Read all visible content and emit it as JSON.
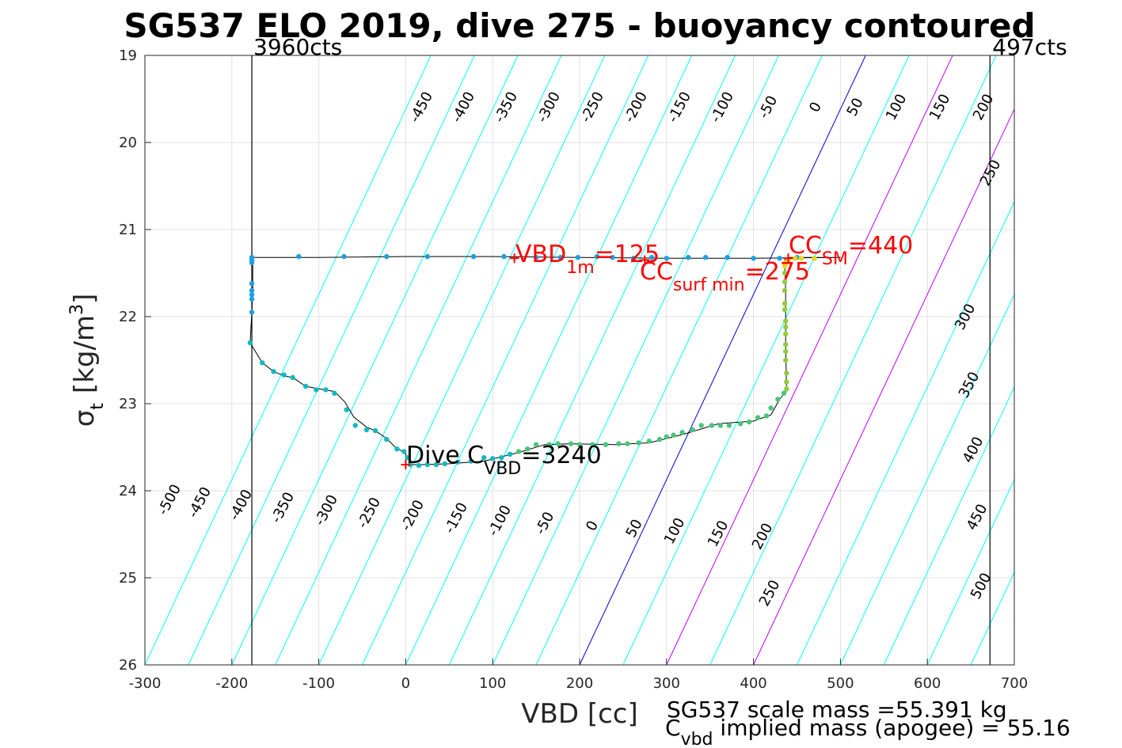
{
  "chart_data": {
    "type": "scatter",
    "title": "SG537 ELO 2019, dive 275 - buoyancy contoured",
    "xlabel": "VBD [cc]",
    "ylabel_main": "σ",
    "ylabel_sub": "t",
    "ylabel_unit": "[kg/m",
    "ylabel_sup": "3",
    "ylabel_close": "]",
    "xlim": [
      -300,
      700
    ],
    "ylim": [
      19,
      26
    ],
    "y_reversed": true,
    "grid": true,
    "xticks": [
      -300,
      -200,
      -100,
      0,
      100,
      200,
      300,
      400,
      500,
      600,
      700
    ],
    "yticks": [
      19,
      20,
      21,
      22,
      23,
      24,
      25,
      26
    ],
    "vlines": [
      {
        "x": -177,
        "label": "3960cts"
      },
      {
        "x": 672,
        "label": "497cts"
      }
    ],
    "contours": {
      "x_at_sigma26": -300,
      "slope_cc_per_kgm3": 47,
      "levels": [
        -500,
        -450,
        -400,
        -350,
        -300,
        -250,
        -200,
        -150,
        -100,
        -50,
        0,
        50,
        100,
        150,
        200,
        250,
        300,
        350,
        400,
        450,
        500
      ],
      "upper_labels": [
        "-450",
        "-400",
        "-350",
        "-300",
        "-250",
        "-200",
        "-150",
        "-100",
        "-50",
        "0",
        "50",
        "100",
        "150",
        "200"
      ],
      "lower_labels": [
        "-500",
        "-450",
        "-400",
        "-350",
        "-300",
        "-250",
        "-200",
        "-150",
        "-100",
        "-50",
        "0",
        "50",
        "100",
        "150",
        "200"
      ],
      "right_labels": [
        "250",
        "300",
        "350",
        "400",
        "450",
        "500"
      ],
      "extra_label": "250"
    },
    "colors": {
      "contour": "#00ffff",
      "zero_contour": "#0000cc",
      "positive_contour": "#bb00ff",
      "track": "#000000",
      "points_blue": "#1e9fe0",
      "points_teal": "#15b8c0",
      "points_green": "#49c47a",
      "points_lime": "#8fcc3c",
      "points_yellow": "#e8d81a",
      "annotation": "#ff0000"
    },
    "track": [
      [
        -177,
        21.32
      ],
      [
        -176,
        21.4
      ],
      [
        -176,
        21.7
      ],
      [
        -177,
        21.95
      ],
      [
        -179,
        22.3
      ],
      [
        -165,
        22.53
      ],
      [
        -152,
        22.63
      ],
      [
        -140,
        22.68
      ],
      [
        -130,
        22.7
      ],
      [
        -115,
        22.8
      ],
      [
        -100,
        22.83
      ],
      [
        -82,
        22.86
      ],
      [
        -70,
        22.98
      ],
      [
        -60,
        23.15
      ],
      [
        -45,
        23.27
      ],
      [
        -35,
        23.31
      ],
      [
        -22,
        23.4
      ],
      [
        -12,
        23.5
      ],
      [
        0,
        23.57
      ],
      [
        0,
        23.7
      ],
      [
        20,
        23.7
      ],
      [
        50,
        23.69
      ],
      [
        90,
        23.66
      ],
      [
        130,
        23.56
      ],
      [
        160,
        23.47
      ],
      [
        190,
        23.46
      ],
      [
        240,
        23.47
      ],
      [
        280,
        23.45
      ],
      [
        320,
        23.35
      ],
      [
        360,
        23.23
      ],
      [
        400,
        23.2
      ],
      [
        420,
        23.13
      ],
      [
        430,
        22.95
      ],
      [
        438,
        22.85
      ],
      [
        437,
        22.3
      ],
      [
        437,
        21.7
      ],
      [
        436,
        21.4
      ],
      [
        436,
        21.35
      ],
      [
        440,
        21.32
      ],
      [
        470,
        21.32
      ],
      [
        500,
        21.32
      ],
      [
        400,
        21.33
      ],
      [
        300,
        21.33
      ],
      [
        200,
        21.32
      ],
      [
        100,
        21.31
      ],
      [
        0,
        21.31
      ],
      [
        -100,
        21.32
      ],
      [
        -177,
        21.32
      ]
    ],
    "points_blue": [
      [
        -177,
        21.32
      ],
      [
        -123,
        21.31
      ],
      [
        -71,
        21.31
      ],
      [
        -22,
        21.31
      ],
      [
        25,
        21.31
      ],
      [
        78,
        21.31
      ],
      [
        113,
        21.31
      ],
      [
        150,
        21.32
      ],
      [
        178,
        21.32
      ],
      [
        198,
        21.32
      ],
      [
        220,
        21.31
      ],
      [
        238,
        21.32
      ],
      [
        262,
        21.33
      ],
      [
        283,
        21.32
      ],
      [
        300,
        21.33
      ],
      [
        325,
        21.32
      ],
      [
        345,
        21.32
      ],
      [
        370,
        21.32
      ],
      [
        400,
        21.33
      ],
      [
        430,
        21.33
      ],
      [
        450,
        21.32
      ],
      [
        470,
        21.33
      ],
      [
        -177,
        21.35
      ],
      [
        -177,
        21.38
      ],
      [
        -177,
        21.62
      ],
      [
        -177,
        21.7
      ],
      [
        -177,
        21.75
      ],
      [
        -177,
        21.8
      ],
      [
        -177,
        21.95
      ]
    ],
    "points_teal": [
      [
        -179,
        22.3
      ],
      [
        -165,
        22.53
      ],
      [
        -152,
        22.63
      ],
      [
        -140,
        22.67
      ],
      [
        -130,
        22.7
      ],
      [
        -115,
        22.8
      ],
      [
        -103,
        22.84
      ],
      [
        -92,
        22.84
      ],
      [
        -82,
        22.88
      ],
      [
        -68,
        23.07
      ],
      [
        -58,
        23.25
      ],
      [
        -45,
        23.3
      ],
      [
        -35,
        23.31
      ],
      [
        -22,
        23.41
      ],
      [
        -10,
        23.52
      ],
      [
        -2,
        23.55
      ],
      [
        2,
        23.62
      ],
      [
        5,
        23.7
      ],
      [
        15,
        23.71
      ],
      [
        25,
        23.7
      ],
      [
        35,
        23.7
      ],
      [
        45,
        23.69
      ],
      [
        60,
        23.67
      ],
      [
        75,
        23.66
      ],
      [
        90,
        23.62
      ],
      [
        100,
        23.63
      ],
      [
        110,
        23.62
      ],
      [
        120,
        23.58
      ]
    ],
    "points_green": [
      [
        130,
        23.55
      ],
      [
        140,
        23.52
      ],
      [
        150,
        23.47
      ],
      [
        165,
        23.47
      ],
      [
        175,
        23.46
      ],
      [
        190,
        23.46
      ],
      [
        200,
        23.47
      ],
      [
        215,
        23.47
      ],
      [
        230,
        23.47
      ],
      [
        245,
        23.46
      ],
      [
        255,
        23.46
      ],
      [
        268,
        23.45
      ],
      [
        280,
        23.43
      ],
      [
        292,
        23.41
      ],
      [
        300,
        23.38
      ],
      [
        308,
        23.36
      ],
      [
        318,
        23.33
      ],
      [
        330,
        23.3
      ],
      [
        340,
        23.25
      ],
      [
        352,
        23.25
      ],
      [
        362,
        23.25
      ],
      [
        372,
        23.25
      ],
      [
        385,
        23.23
      ],
      [
        395,
        23.21
      ],
      [
        405,
        23.16
      ],
      [
        415,
        23.14
      ],
      [
        420,
        23.05
      ],
      [
        428,
        22.95
      ],
      [
        435,
        22.88
      ]
    ],
    "points_lime": [
      [
        438,
        22.83
      ],
      [
        438,
        22.75
      ],
      [
        438,
        22.65
      ],
      [
        437,
        22.5
      ],
      [
        437,
        22.4
      ],
      [
        437,
        22.32
      ],
      [
        437,
        22.2
      ],
      [
        437,
        22.12
      ],
      [
        437,
        22.05
      ],
      [
        436,
        21.92
      ],
      [
        436,
        21.85
      ],
      [
        436,
        21.7
      ],
      [
        436,
        21.6
      ],
      [
        436,
        21.5
      ]
    ],
    "points_yellow": [
      [
        436,
        21.42
      ],
      [
        437,
        21.38
      ],
      [
        440,
        21.35
      ],
      [
        448,
        21.33
      ],
      [
        455,
        21.33
      ],
      [
        470,
        21.33
      ]
    ],
    "annotations": {
      "vbd1m": {
        "x": 125,
        "y": 21.33,
        "main": "VBD",
        "sub": "1m",
        "tail": "=125"
      },
      "ccsurf": {
        "x": 275,
        "y": 21.35,
        "main": "CC",
        "sub": "surf min",
        "tail": "=275"
      },
      "ccsm": {
        "x": 440,
        "y": 21.33,
        "main": "CC",
        "sub": "SM",
        "tail": "=440"
      },
      "dive": {
        "x": 0,
        "y": 23.7,
        "main": "Dive C",
        "sub": "VBD",
        "tail": "=3240"
      }
    },
    "footer": {
      "line1": "SG537 scale mass =55.391 kg",
      "line2_main": "C",
      "line2_sub": "vbd",
      "line2_tail": " implied mass (apogee) = 55.16"
    }
  }
}
